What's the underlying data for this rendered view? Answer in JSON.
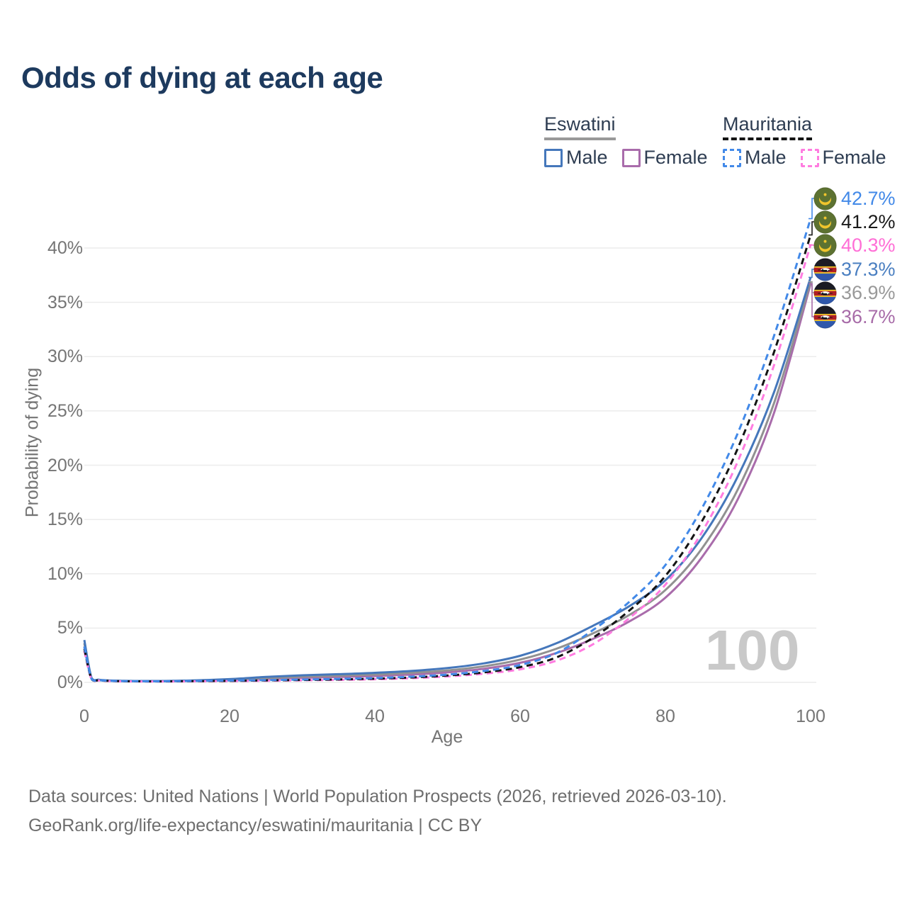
{
  "title": "Odds of dying at each age",
  "watermark": "100",
  "legend": {
    "groups": [
      {
        "name": "Eswatini",
        "line_style": "solid",
        "underline_color": "#999999",
        "items": [
          {
            "label": "Male",
            "color": "#4577bb"
          },
          {
            "label": "Female",
            "color": "#a96cab"
          }
        ]
      },
      {
        "name": "Mauritania",
        "line_style": "dashed",
        "underline_color": "#141414",
        "items": [
          {
            "label": "Male",
            "color": "#4289e8"
          },
          {
            "label": "Female",
            "color": "#ff7ce0"
          }
        ]
      }
    ]
  },
  "axes": {
    "x": {
      "title": "Age",
      "ticks": [
        0,
        20,
        40,
        60,
        80,
        100
      ],
      "range": [
        0,
        100
      ]
    },
    "y": {
      "title": "Probability of dying",
      "ticks": [
        "0%",
        "5%",
        "10%",
        "15%",
        "20%",
        "25%",
        "30%",
        "35%",
        "40%"
      ],
      "range_percent": [
        0,
        40
      ],
      "gridlines": true
    }
  },
  "footer": {
    "line1": "Data sources: United Nations | World Population Prospects (2026, retrieved 2026-03-10).",
    "line2": "GeoRank.org/life-expectancy/eswatini/mauritania | CC BY"
  },
  "chart_data": {
    "type": "line",
    "title": "Odds of dying at each age",
    "xlabel": "Age",
    "ylabel": "Probability of dying",
    "unit": "percent",
    "xlim": [
      0,
      100
    ],
    "ylim": [
      0,
      44
    ],
    "legend_position": "top-right",
    "grid": "horizontal",
    "x": [
      0,
      1,
      2,
      3,
      5,
      10,
      15,
      20,
      25,
      30,
      35,
      40,
      45,
      50,
      55,
      60,
      65,
      70,
      75,
      80,
      85,
      90,
      95,
      100
    ],
    "series": [
      {
        "name": "Mauritania Male",
        "country": "Mauritania",
        "sex": "Male",
        "style": "dashed",
        "color": "#4289e8",
        "label_color": "#4289e8",
        "flag": "mauritania",
        "end_label": "42.7%",
        "values": [
          3.3,
          0.3,
          0.2,
          0.16,
          0.12,
          0.1,
          0.13,
          0.17,
          0.21,
          0.26,
          0.32,
          0.4,
          0.52,
          0.72,
          1.05,
          1.6,
          2.7,
          4.8,
          7.4,
          10.8,
          16.0,
          23.0,
          32.0,
          42.7
        ]
      },
      {
        "name": "Mauritania Both sexes",
        "country": "Mauritania",
        "sex": "Both sexes",
        "style": "dashed",
        "color": "#141414",
        "label_color": "#1a1a1a",
        "flag": "mauritania",
        "end_label": "41.2%",
        "values": [
          3.1,
          0.28,
          0.19,
          0.15,
          0.11,
          0.09,
          0.11,
          0.14,
          0.18,
          0.22,
          0.27,
          0.34,
          0.45,
          0.63,
          0.92,
          1.4,
          2.3,
          4.1,
          6.6,
          9.8,
          14.8,
          21.6,
          30.5,
          41.2
        ]
      },
      {
        "name": "Mauritania Female",
        "country": "Mauritania",
        "sex": "Female",
        "style": "dashed",
        "color": "#ff7ce0",
        "label_color": "#ff6ed6",
        "flag": "mauritania",
        "end_label": "40.3%",
        "values": [
          2.9,
          0.26,
          0.17,
          0.13,
          0.1,
          0.08,
          0.1,
          0.12,
          0.15,
          0.19,
          0.23,
          0.29,
          0.39,
          0.55,
          0.8,
          1.2,
          2.0,
          3.5,
          5.9,
          9.0,
          13.8,
          20.4,
          29.3,
          40.3
        ]
      },
      {
        "name": "Eswatini Male",
        "country": "Eswatini",
        "sex": "Male",
        "style": "solid",
        "color": "#4577bb",
        "label_color": "#4a7fc1",
        "flag": "eswatini",
        "end_label": "37.3%",
        "values": [
          3.9,
          0.4,
          0.25,
          0.19,
          0.15,
          0.13,
          0.18,
          0.3,
          0.5,
          0.65,
          0.76,
          0.88,
          1.05,
          1.32,
          1.75,
          2.45,
          3.6,
          5.2,
          7.0,
          9.4,
          13.3,
          19.0,
          26.8,
          37.3
        ]
      },
      {
        "name": "Eswatini Both sexes",
        "country": "Eswatini",
        "sex": "Both sexes",
        "style": "solid",
        "color": "#919191",
        "label_color": "#999999",
        "flag": "eswatini",
        "end_label": "36.9%",
        "values": [
          3.6,
          0.37,
          0.23,
          0.17,
          0.13,
          0.11,
          0.15,
          0.25,
          0.4,
          0.52,
          0.62,
          0.72,
          0.88,
          1.1,
          1.48,
          2.1,
          3.1,
          4.5,
          6.2,
          8.5,
          12.3,
          17.8,
          25.8,
          36.9
        ]
      },
      {
        "name": "Eswatini Female",
        "country": "Eswatini",
        "sex": "Female",
        "style": "solid",
        "color": "#a96cab",
        "label_color": "#a76ba8",
        "flag": "eswatini",
        "end_label": "36.7%",
        "values": [
          3.3,
          0.34,
          0.21,
          0.16,
          0.12,
          0.1,
          0.13,
          0.2,
          0.31,
          0.42,
          0.5,
          0.58,
          0.72,
          0.92,
          1.25,
          1.8,
          2.7,
          4.0,
          5.6,
          7.8,
          11.5,
          16.9,
          24.9,
          36.7
        ]
      }
    ]
  }
}
